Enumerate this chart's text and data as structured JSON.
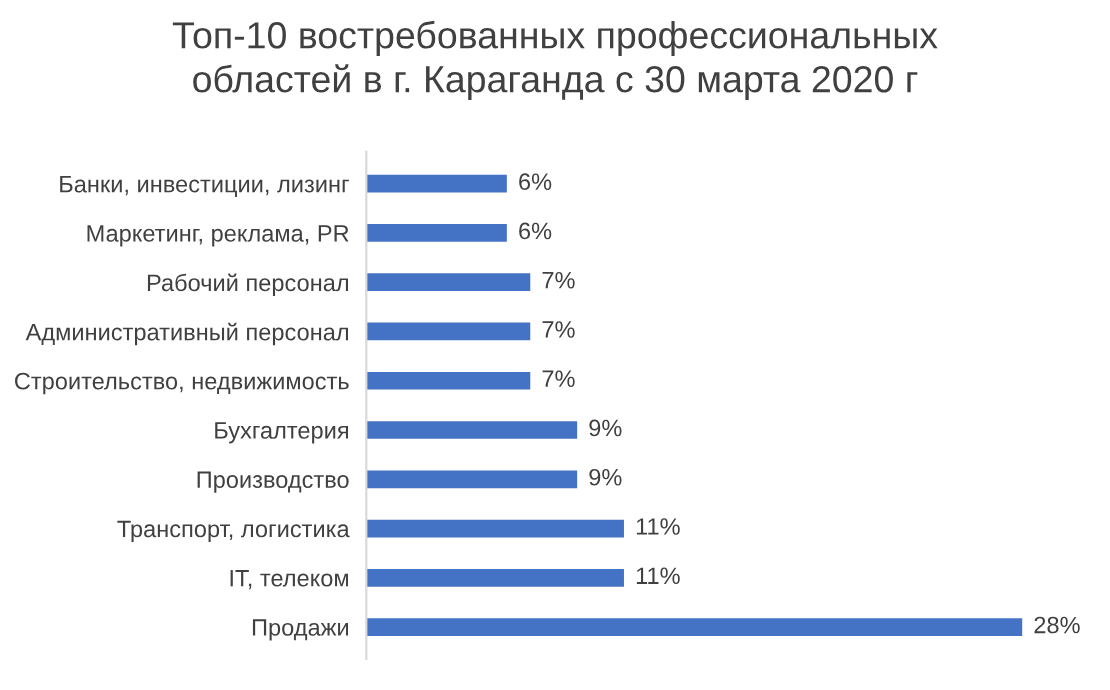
{
  "chart_data": {
    "type": "bar",
    "orientation": "horizontal",
    "title": "Топ-10 востребованных профессиональных\nобластей в г. Караганда с 30 марта 2020 г",
    "categories": [
      "Банки, инвестиции, лизинг",
      "Маркетинг, реклама, PR",
      "Рабочий персонал",
      "Административный персонал",
      "Строительство, недвижимость",
      "Бухгалтерия",
      "Производство",
      "Транспорт, логистика",
      "IT, телеком",
      "Продажи"
    ],
    "values": [
      6,
      6,
      7,
      7,
      7,
      9,
      9,
      11,
      11,
      28
    ],
    "value_labels": [
      "6%",
      "6%",
      "7%",
      "7%",
      "7%",
      "9%",
      "9%",
      "11%",
      "11%",
      "28%"
    ],
    "color": "#4472c4",
    "grid": false,
    "legend": false
  }
}
